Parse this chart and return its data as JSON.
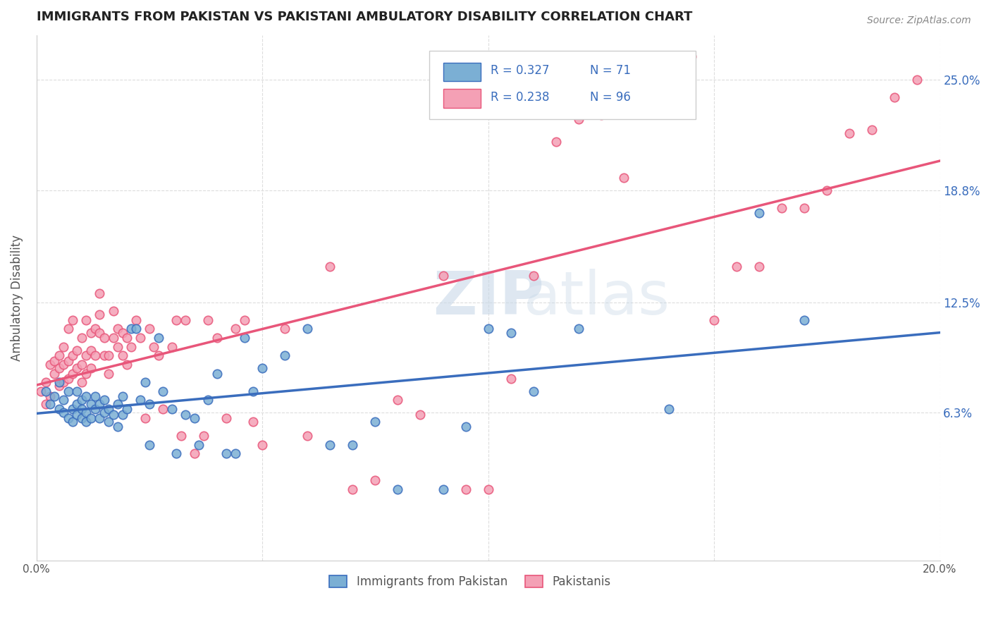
{
  "title": "IMMIGRANTS FROM PAKISTAN VS PAKISTANI AMBULATORY DISABILITY CORRELATION CHART",
  "source": "Source: ZipAtlas.com",
  "ylabel": "Ambulatory Disability",
  "xlabel": "",
  "xlim": [
    0.0,
    0.2
  ],
  "ylim": [
    -0.02,
    0.275
  ],
  "ytick_labels": [
    "6.3%",
    "12.5%",
    "18.8%",
    "25.0%"
  ],
  "ytick_values": [
    0.063,
    0.125,
    0.188,
    0.25
  ],
  "xtick_labels": [
    "0.0%",
    "",
    "",
    "",
    "20.0%"
  ],
  "xtick_values": [
    0.0,
    0.05,
    0.1,
    0.15,
    0.2
  ],
  "legend_labels": [
    "Immigrants from Pakistan",
    "Pakistanis"
  ],
  "blue_R": "R = 0.327",
  "blue_N": "N = 71",
  "pink_R": "R = 0.238",
  "pink_N": "N = 96",
  "blue_color": "#7bafd4",
  "pink_color": "#f4a0b5",
  "blue_line_color": "#3a6dbd",
  "pink_line_color": "#e8567a",
  "watermark_zip": "ZIP",
  "watermark_atlas": "atlas",
  "background_color": "#ffffff",
  "grid_color": "#dddddd",
  "blue_scatter_x": [
    0.002,
    0.003,
    0.004,
    0.005,
    0.005,
    0.006,
    0.006,
    0.007,
    0.007,
    0.008,
    0.008,
    0.009,
    0.009,
    0.009,
    0.01,
    0.01,
    0.01,
    0.011,
    0.011,
    0.011,
    0.012,
    0.012,
    0.013,
    0.013,
    0.014,
    0.014,
    0.015,
    0.015,
    0.016,
    0.016,
    0.017,
    0.018,
    0.018,
    0.019,
    0.019,
    0.02,
    0.021,
    0.022,
    0.023,
    0.024,
    0.025,
    0.025,
    0.027,
    0.028,
    0.03,
    0.031,
    0.033,
    0.035,
    0.036,
    0.038,
    0.04,
    0.042,
    0.044,
    0.046,
    0.048,
    0.05,
    0.055,
    0.06,
    0.065,
    0.07,
    0.075,
    0.08,
    0.09,
    0.095,
    0.1,
    0.105,
    0.11,
    0.12,
    0.14,
    0.16,
    0.17
  ],
  "blue_scatter_y": [
    0.075,
    0.068,
    0.072,
    0.065,
    0.08,
    0.063,
    0.07,
    0.06,
    0.075,
    0.058,
    0.065,
    0.062,
    0.068,
    0.075,
    0.06,
    0.065,
    0.07,
    0.058,
    0.063,
    0.072,
    0.06,
    0.068,
    0.065,
    0.072,
    0.06,
    0.068,
    0.063,
    0.07,
    0.058,
    0.065,
    0.062,
    0.068,
    0.055,
    0.062,
    0.072,
    0.065,
    0.11,
    0.11,
    0.07,
    0.08,
    0.045,
    0.068,
    0.105,
    0.075,
    0.065,
    0.04,
    0.062,
    0.06,
    0.045,
    0.07,
    0.085,
    0.04,
    0.04,
    0.105,
    0.075,
    0.088,
    0.095,
    0.11,
    0.045,
    0.045,
    0.058,
    0.02,
    0.02,
    0.055,
    0.11,
    0.108,
    0.075,
    0.11,
    0.065,
    0.175,
    0.115
  ],
  "pink_scatter_x": [
    0.001,
    0.002,
    0.002,
    0.003,
    0.003,
    0.004,
    0.004,
    0.005,
    0.005,
    0.005,
    0.006,
    0.006,
    0.006,
    0.007,
    0.007,
    0.007,
    0.008,
    0.008,
    0.008,
    0.009,
    0.009,
    0.01,
    0.01,
    0.01,
    0.011,
    0.011,
    0.011,
    0.012,
    0.012,
    0.012,
    0.013,
    0.013,
    0.014,
    0.014,
    0.014,
    0.015,
    0.015,
    0.016,
    0.016,
    0.017,
    0.017,
    0.018,
    0.018,
    0.019,
    0.019,
    0.02,
    0.02,
    0.021,
    0.022,
    0.023,
    0.024,
    0.025,
    0.026,
    0.027,
    0.028,
    0.03,
    0.031,
    0.032,
    0.033,
    0.035,
    0.037,
    0.038,
    0.04,
    0.042,
    0.044,
    0.046,
    0.048,
    0.05,
    0.055,
    0.06,
    0.065,
    0.07,
    0.075,
    0.08,
    0.085,
    0.09,
    0.095,
    0.1,
    0.105,
    0.11,
    0.115,
    0.12,
    0.125,
    0.13,
    0.14,
    0.145,
    0.15,
    0.155,
    0.16,
    0.165,
    0.17,
    0.175,
    0.18,
    0.185,
    0.19,
    0.195
  ],
  "pink_scatter_y": [
    0.075,
    0.068,
    0.08,
    0.072,
    0.09,
    0.085,
    0.092,
    0.078,
    0.088,
    0.095,
    0.08,
    0.09,
    0.1,
    0.082,
    0.092,
    0.11,
    0.085,
    0.095,
    0.115,
    0.088,
    0.098,
    0.08,
    0.09,
    0.105,
    0.085,
    0.095,
    0.115,
    0.088,
    0.098,
    0.108,
    0.11,
    0.095,
    0.108,
    0.118,
    0.13,
    0.095,
    0.105,
    0.085,
    0.095,
    0.105,
    0.12,
    0.1,
    0.11,
    0.095,
    0.108,
    0.09,
    0.105,
    0.1,
    0.115,
    0.105,
    0.06,
    0.11,
    0.1,
    0.095,
    0.065,
    0.1,
    0.115,
    0.05,
    0.115,
    0.04,
    0.05,
    0.115,
    0.105,
    0.06,
    0.11,
    0.115,
    0.058,
    0.045,
    0.11,
    0.05,
    0.145,
    0.02,
    0.025,
    0.07,
    0.062,
    0.14,
    0.02,
    0.02,
    0.082,
    0.14,
    0.215,
    0.228,
    0.23,
    0.195,
    0.262,
    0.263,
    0.115,
    0.145,
    0.145,
    0.178,
    0.178,
    0.188,
    0.22,
    0.222,
    0.24,
    0.25
  ]
}
